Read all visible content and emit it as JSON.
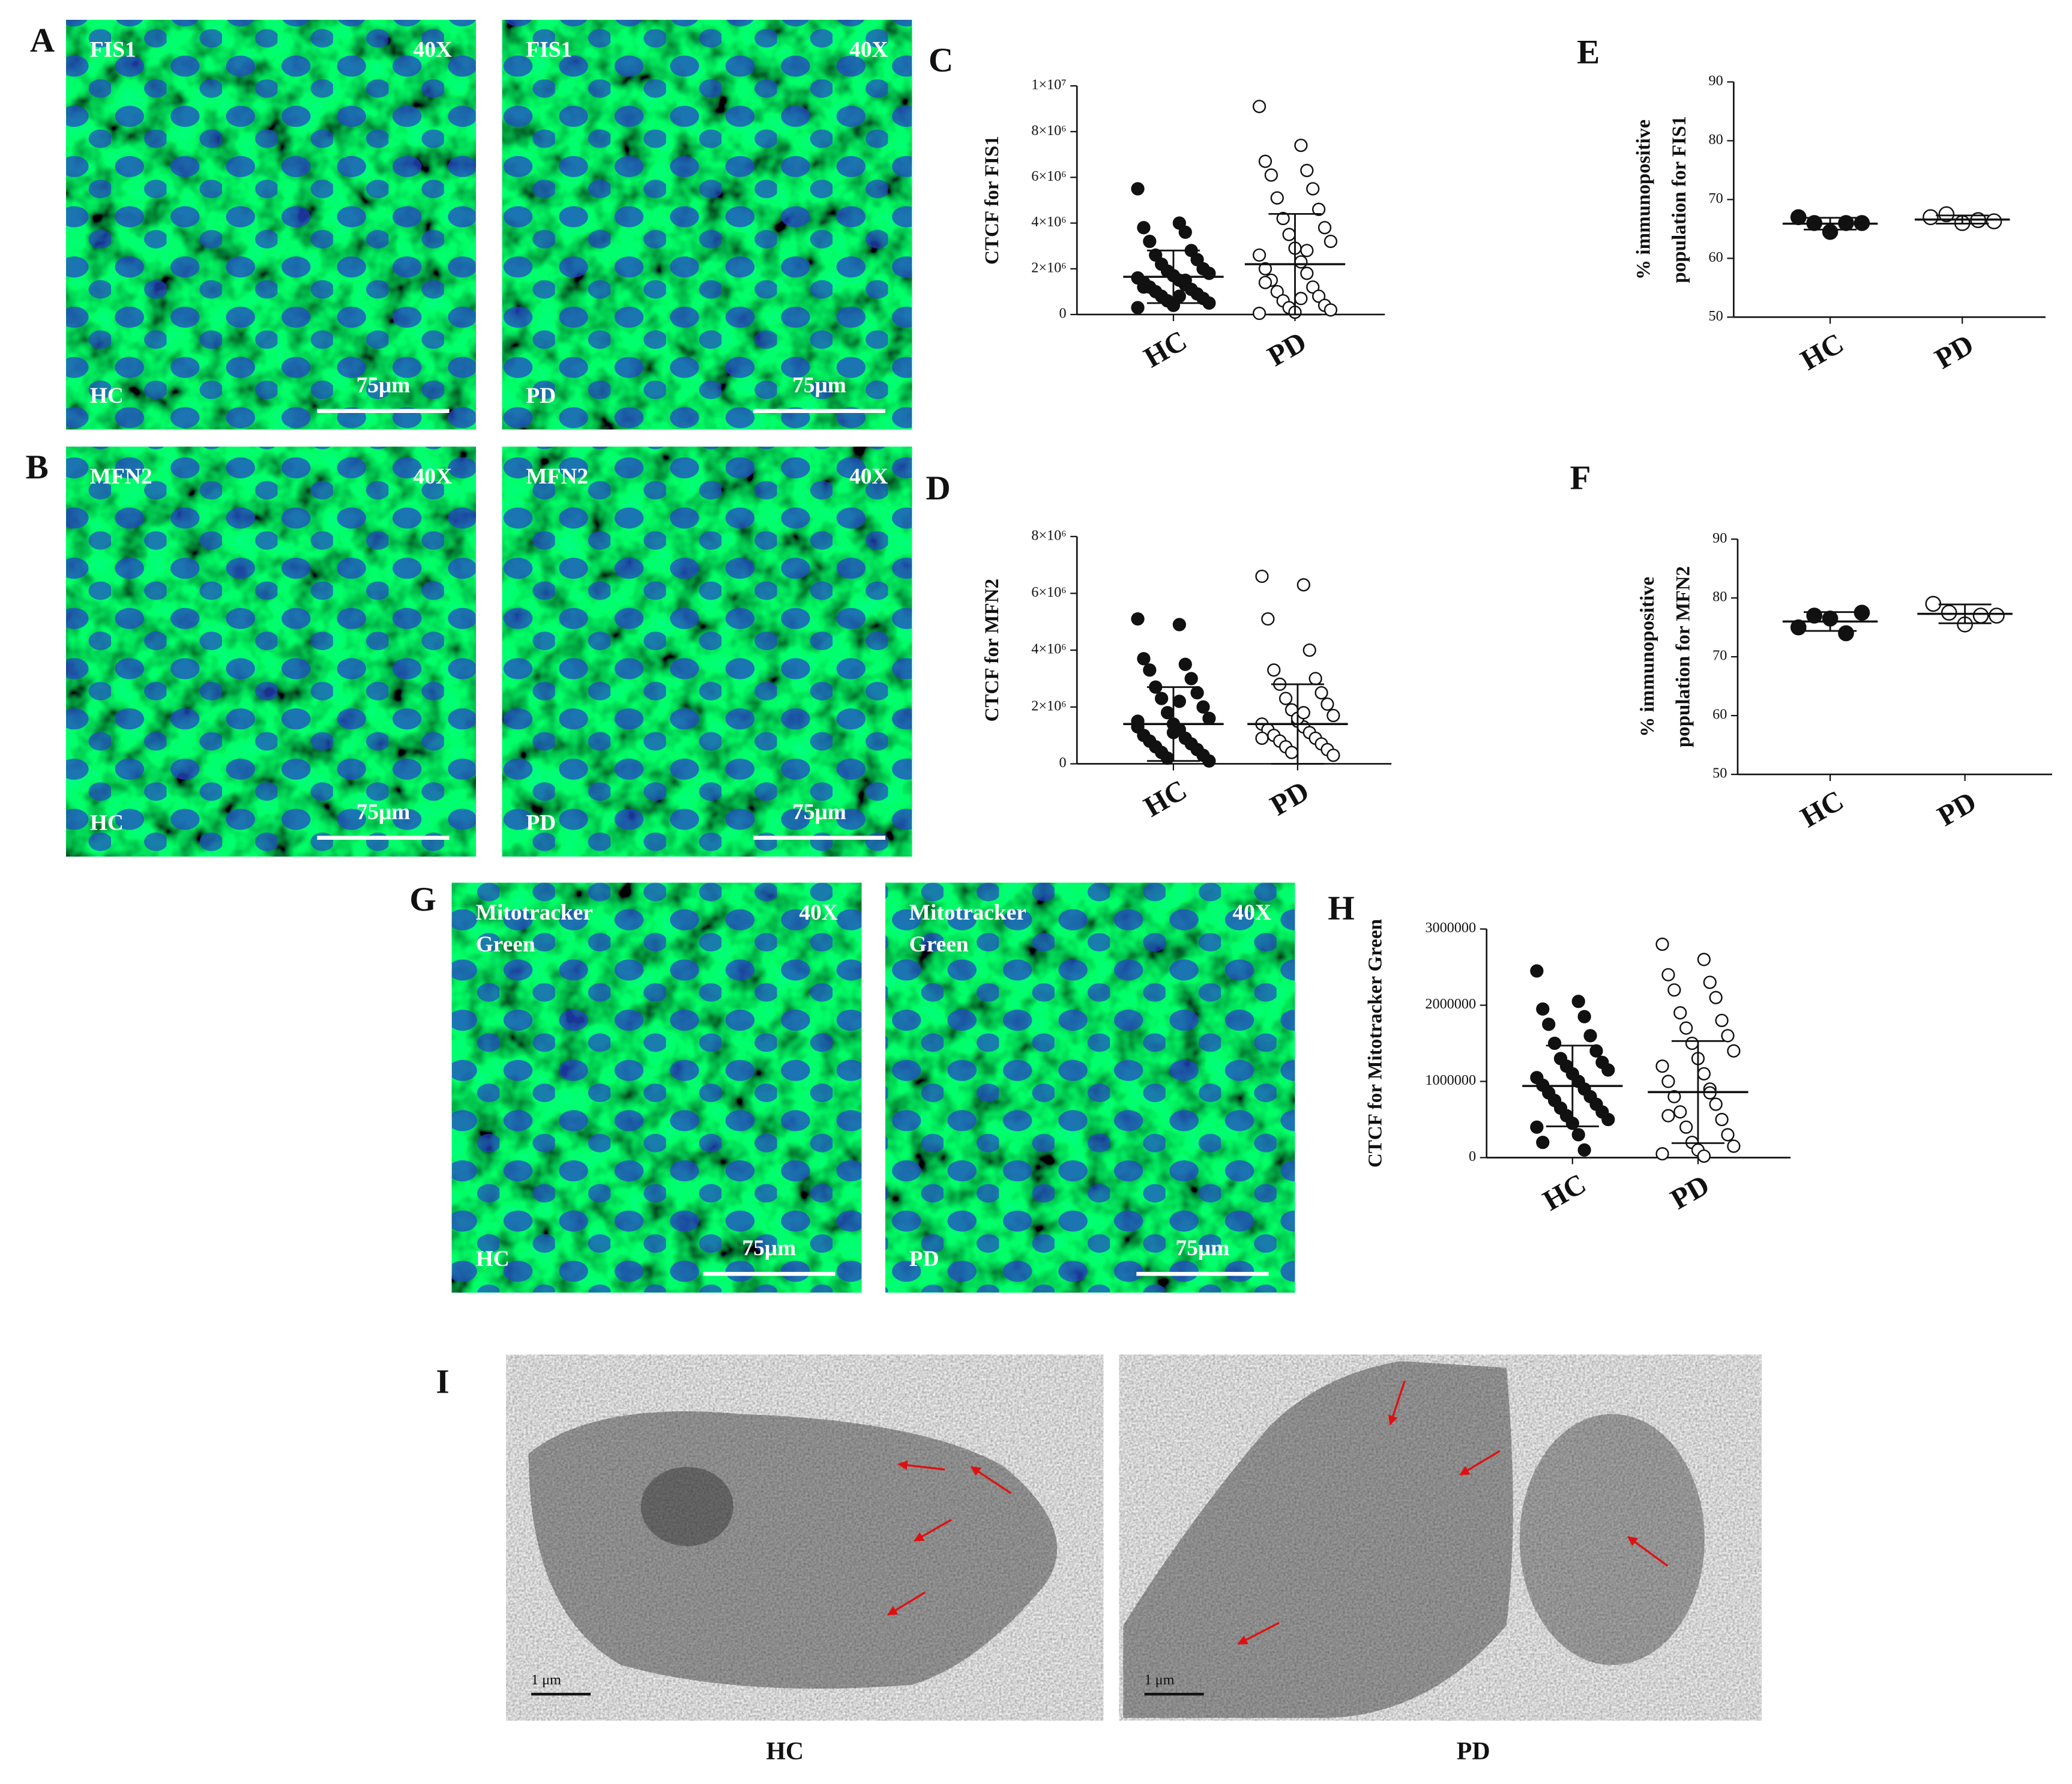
{
  "panel_letters": [
    "A",
    "B",
    "C",
    "D",
    "E",
    "F",
    "G",
    "H",
    "I"
  ],
  "micrographs": [
    {
      "stain": [
        "FIS1"
      ],
      "magnification": "40X",
      "group": "HC",
      "scale": "75μm"
    },
    {
      "stain": [
        "FIS1"
      ],
      "magnification": "40X",
      "group": "PD",
      "scale": "75μm"
    },
    {
      "stain": [
        "MFN2"
      ],
      "magnification": "40X",
      "group": "HC",
      "scale": "75μm"
    },
    {
      "stain": [
        "MFN2"
      ],
      "magnification": "40X",
      "group": "PD",
      "scale": "75μm"
    },
    {
      "stain": [
        "Mitotracker",
        "Green"
      ],
      "magnification": "40X",
      "group": "HC",
      "scale": "75μm"
    },
    {
      "stain": [
        "Mitotracker",
        "Green"
      ],
      "magnification": "40X",
      "group": "PD",
      "scale": "75μm"
    }
  ],
  "electron_micrographs": {
    "groups": [
      "HC",
      "PD"
    ],
    "scale": "1 μm"
  },
  "chart_data": [
    {
      "type": "dot",
      "ylabel": [
        "CTCF for FIS1"
      ],
      "categories": [
        "HC",
        "PD"
      ],
      "ylim": [
        0,
        10000000
      ],
      "yticks": [
        0,
        {
          "value": 2000000,
          "label": "2×10⁶"
        },
        {
          "value": 4000000,
          "label": "4×10⁶"
        },
        {
          "value": 6000000,
          "label": "6×10⁶"
        },
        {
          "value": 8000000,
          "label": "8×10⁶"
        },
        {
          "value": 10000000,
          "label": "1×10⁷"
        }
      ],
      "groups": [
        {
          "marker": "filled",
          "mean": 1650000,
          "sd": 1150000,
          "values": [
            5500000,
            4000000,
            3800000,
            3600000,
            3200000,
            2800000,
            2600000,
            2400000,
            2200000,
            2000000,
            1900000,
            1800000,
            1700000,
            1600000,
            1500000,
            1400000,
            1300000,
            1200000,
            1100000,
            1000000,
            900000,
            800000,
            700000,
            600000,
            500000,
            400000,
            300000,
            800000,
            1200000,
            1500000
          ]
        },
        {
          "marker": "open",
          "mean": 2200000,
          "sd": 2200000,
          "values": [
            9100000,
            7400000,
            6700000,
            6300000,
            6100000,
            5500000,
            5100000,
            4600000,
            4200000,
            3800000,
            3500000,
            3200000,
            2900000,
            2600000,
            2300000,
            2000000,
            1800000,
            1500000,
            1200000,
            1000000,
            800000,
            600000,
            400000,
            300000,
            200000,
            100000,
            50000,
            700000,
            1400000,
            2800000
          ]
        }
      ]
    },
    {
      "type": "dot",
      "ylabel": [
        "CTCF for MFN2"
      ],
      "categories": [
        "HC",
        "PD"
      ],
      "ylim": [
        0,
        8000000
      ],
      "yticks": [
        0,
        {
          "value": 2000000,
          "label": "2×10⁶"
        },
        {
          "value": 4000000,
          "label": "4×10⁶"
        },
        {
          "value": 6000000,
          "label": "6×10⁶"
        },
        {
          "value": 8000000,
          "label": "8×10⁶"
        }
      ],
      "groups": [
        {
          "marker": "filled",
          "mean": 1400000,
          "sd": 1300000,
          "values": [
            5100000,
            4900000,
            3700000,
            3500000,
            3300000,
            3000000,
            2700000,
            2500000,
            2300000,
            2000000,
            1800000,
            1600000,
            1400000,
            1300000,
            1200000,
            1000000,
            900000,
            800000,
            700000,
            600000,
            500000,
            400000,
            300000,
            200000,
            100000,
            1100000,
            1500000,
            2200000
          ]
        },
        {
          "marker": "open",
          "mean": 1400000,
          "sd": 1400000,
          "values": [
            6600000,
            6300000,
            5100000,
            4000000,
            3300000,
            3000000,
            2800000,
            2500000,
            2300000,
            2100000,
            1900000,
            1700000,
            1500000,
            1400000,
            1300000,
            1200000,
            1100000,
            1000000,
            900000,
            800000,
            700000,
            600000,
            500000,
            400000,
            300000,
            1600000,
            900000,
            1800000
          ]
        }
      ]
    },
    {
      "type": "dot",
      "ylabel": [
        "% immunopositive",
        "population for FIS1"
      ],
      "categories": [
        "HC",
        "PD"
      ],
      "ylim": [
        50,
        90
      ],
      "yticks": [
        50,
        60,
        70,
        80,
        90
      ],
      "groups": [
        {
          "marker": "filled",
          "mean": 65.9,
          "sd": 1.0,
          "values": [
            67,
            66,
            64.5,
            66,
            66
          ]
        },
        {
          "marker": "open",
          "mean": 66.6,
          "sd": 0.7,
          "values": [
            67,
            67.5,
            66,
            66.5,
            66.3
          ]
        }
      ]
    },
    {
      "type": "dot",
      "ylabel": [
        "% immunopositive",
        "population for MFN2"
      ],
      "categories": [
        "HC",
        "PD"
      ],
      "ylim": [
        50,
        90
      ],
      "yticks": [
        50,
        60,
        70,
        80,
        90
      ],
      "groups": [
        {
          "marker": "filled",
          "mean": 76,
          "sd": 1.6,
          "values": [
            75,
            77,
            76.5,
            74,
            77.5
          ]
        },
        {
          "marker": "open",
          "mean": 77.3,
          "sd": 1.6,
          "values": [
            79,
            77.5,
            75.5,
            77,
            77
          ]
        }
      ]
    },
    {
      "type": "dot",
      "ylabel": [
        "CTCF for Mitotracker Green"
      ],
      "categories": [
        "HC",
        "PD"
      ],
      "ylim": [
        0,
        3000000
      ],
      "yticks": [
        0,
        1000000,
        2000000,
        3000000
      ],
      "groups": [
        {
          "marker": "filled",
          "mean": 940000,
          "sd": 530000,
          "values": [
            2450000,
            2050000,
            1950000,
            1850000,
            1750000,
            1600000,
            1500000,
            1400000,
            1300000,
            1250000,
            1200000,
            1150000,
            1100000,
            1050000,
            1000000,
            950000,
            900000,
            850000,
            800000,
            750000,
            700000,
            650000,
            600000,
            550000,
            500000,
            450000,
            400000,
            300000,
            200000,
            100000
          ]
        },
        {
          "marker": "open",
          "mean": 860000,
          "sd": 670000,
          "values": [
            2800000,
            2600000,
            2400000,
            2300000,
            2200000,
            2100000,
            1900000,
            1800000,
            1700000,
            1600000,
            1500000,
            1400000,
            1300000,
            1200000,
            1100000,
            1000000,
            900000,
            800000,
            700000,
            600000,
            500000,
            400000,
            300000,
            200000,
            150000,
            100000,
            50000,
            20000,
            550000,
            850000
          ]
        }
      ]
    }
  ]
}
